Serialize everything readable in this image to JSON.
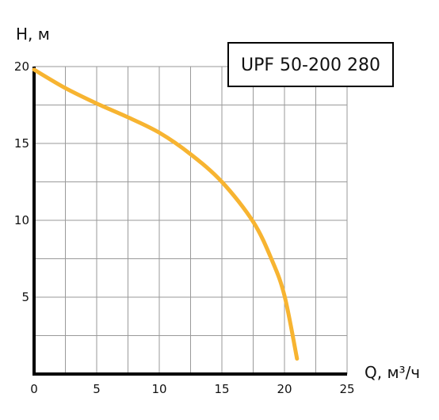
{
  "chart_data": {
    "type": "line",
    "title": "UPF 50-200 280",
    "xlabel": "Q, м³/ч",
    "ylabel": "H, м",
    "xlim": [
      0,
      25
    ],
    "ylim": [
      0,
      20
    ],
    "x_ticks": [
      "0",
      "5",
      "10",
      "15",
      "20",
      "25"
    ],
    "y_ticks": [
      "5",
      "10",
      "15",
      "20"
    ],
    "grid": true,
    "series": [
      {
        "color": "#F7B431",
        "x": [
          0,
          2.5,
          5,
          7.5,
          10,
          12.5,
          15,
          17.5,
          19,
          20,
          21
        ],
        "y": [
          19.8,
          18.6,
          17.6,
          16.7,
          15.7,
          14.3,
          12.5,
          9.9,
          7.4,
          5.1,
          1.0
        ]
      }
    ]
  }
}
